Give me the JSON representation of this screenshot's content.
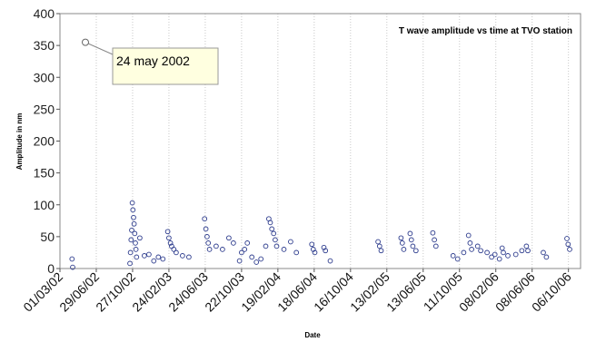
{
  "chart_data": {
    "type": "scatter",
    "title": "T wave amplitude vs time at TVO station",
    "xlabel": "Date",
    "ylabel": "Amplitude in nm",
    "ylim": [
      0,
      400
    ],
    "yticks": [
      0,
      50,
      100,
      150,
      200,
      250,
      300,
      350,
      400
    ],
    "xlim": [
      "2002-03-01",
      "2006-11-15"
    ],
    "xtick_labels": [
      "01/03/02",
      "29/06/02",
      "27/10/02",
      "24/02/03",
      "24/06/03",
      "22/10/03",
      "19/02/04",
      "18/06/04",
      "16/10/04",
      "13/02/05",
      "13/06/05",
      "11/10/05",
      "08/02/06",
      "08/06/06",
      "06/10/06"
    ],
    "xtick_dates": [
      "2002-03-01",
      "2002-06-29",
      "2002-10-27",
      "2003-02-24",
      "2003-06-24",
      "2003-10-22",
      "2004-02-19",
      "2004-06-18",
      "2004-10-16",
      "2005-02-13",
      "2005-06-13",
      "2005-10-11",
      "2006-02-08",
      "2006-06-08",
      "2006-10-06"
    ],
    "grid": "vertical dotted",
    "annotation": {
      "text": "24 may 2002",
      "date": "2002-05-24",
      "value": 355
    },
    "series": [
      {
        "marker": "open circle",
        "color": "#2b3a8c",
        "points": [
          [
            "2002-04-10",
            15
          ],
          [
            "2002-04-12",
            2
          ],
          [
            "2002-10-18",
            8
          ],
          [
            "2002-10-20",
            25
          ],
          [
            "2002-10-22",
            45
          ],
          [
            "2002-10-24",
            60
          ],
          [
            "2002-10-26",
            103
          ],
          [
            "2002-10-28",
            92
          ],
          [
            "2002-10-30",
            80
          ],
          [
            "2002-11-01",
            70
          ],
          [
            "2002-11-03",
            55
          ],
          [
            "2002-11-05",
            40
          ],
          [
            "2002-11-07",
            30
          ],
          [
            "2002-11-09",
            18
          ],
          [
            "2002-11-20",
            48
          ],
          [
            "2002-12-05",
            20
          ],
          [
            "2002-12-20",
            22
          ],
          [
            "2003-01-05",
            12
          ],
          [
            "2003-01-20",
            18
          ],
          [
            "2003-02-04",
            15
          ],
          [
            "2003-02-20",
            58
          ],
          [
            "2003-02-24",
            48
          ],
          [
            "2003-03-01",
            40
          ],
          [
            "2003-03-05",
            35
          ],
          [
            "2003-03-12",
            30
          ],
          [
            "2003-03-20",
            25
          ],
          [
            "2003-04-10",
            20
          ],
          [
            "2003-05-01",
            18
          ],
          [
            "2003-06-22",
            78
          ],
          [
            "2003-06-26",
            62
          ],
          [
            "2003-06-30",
            50
          ],
          [
            "2003-07-04",
            40
          ],
          [
            "2003-07-08",
            30
          ],
          [
            "2003-07-30",
            35
          ],
          [
            "2003-08-20",
            30
          ],
          [
            "2003-09-10",
            48
          ],
          [
            "2003-09-25",
            40
          ],
          [
            "2003-10-15",
            12
          ],
          [
            "2003-10-22",
            25
          ],
          [
            "2003-11-01",
            30
          ],
          [
            "2003-11-10",
            40
          ],
          [
            "2003-11-25",
            18
          ],
          [
            "2003-12-10",
            10
          ],
          [
            "2003-12-25",
            15
          ],
          [
            "2004-01-10",
            35
          ],
          [
            "2004-01-20",
            78
          ],
          [
            "2004-01-25",
            72
          ],
          [
            "2004-01-30",
            62
          ],
          [
            "2004-02-05",
            55
          ],
          [
            "2004-02-10",
            45
          ],
          [
            "2004-02-15",
            35
          ],
          [
            "2004-03-10",
            30
          ],
          [
            "2004-04-01",
            42
          ],
          [
            "2004-04-20",
            25
          ],
          [
            "2004-06-10",
            38
          ],
          [
            "2004-06-15",
            30
          ],
          [
            "2004-06-20",
            25
          ],
          [
            "2004-07-20",
            33
          ],
          [
            "2004-07-25",
            28
          ],
          [
            "2004-08-10",
            12
          ],
          [
            "2005-01-15",
            42
          ],
          [
            "2005-01-20",
            35
          ],
          [
            "2005-01-25",
            28
          ],
          [
            "2005-04-01",
            48
          ],
          [
            "2005-04-05",
            40
          ],
          [
            "2005-04-10",
            30
          ],
          [
            "2005-05-01",
            55
          ],
          [
            "2005-05-05",
            45
          ],
          [
            "2005-05-10",
            35
          ],
          [
            "2005-05-20",
            28
          ],
          [
            "2005-07-15",
            56
          ],
          [
            "2005-07-20",
            45
          ],
          [
            "2005-07-25",
            35
          ],
          [
            "2005-09-20",
            20
          ],
          [
            "2005-10-05",
            15
          ],
          [
            "2005-10-25",
            25
          ],
          [
            "2005-11-10",
            52
          ],
          [
            "2005-11-15",
            40
          ],
          [
            "2005-11-20",
            30
          ],
          [
            "2005-12-10",
            35
          ],
          [
            "2005-12-20",
            28
          ],
          [
            "2006-01-10",
            25
          ],
          [
            "2006-01-25",
            18
          ],
          [
            "2006-02-05",
            22
          ],
          [
            "2006-02-20",
            15
          ],
          [
            "2006-03-01",
            32
          ],
          [
            "2006-03-05",
            25
          ],
          [
            "2006-03-20",
            20
          ],
          [
            "2006-04-15",
            22
          ],
          [
            "2006-05-05",
            28
          ],
          [
            "2006-05-20",
            35
          ],
          [
            "2006-05-25",
            28
          ],
          [
            "2006-07-15",
            25
          ],
          [
            "2006-07-25",
            18
          ],
          [
            "2006-10-01",
            47
          ],
          [
            "2006-10-05",
            38
          ],
          [
            "2006-10-10",
            30
          ]
        ]
      }
    ]
  }
}
